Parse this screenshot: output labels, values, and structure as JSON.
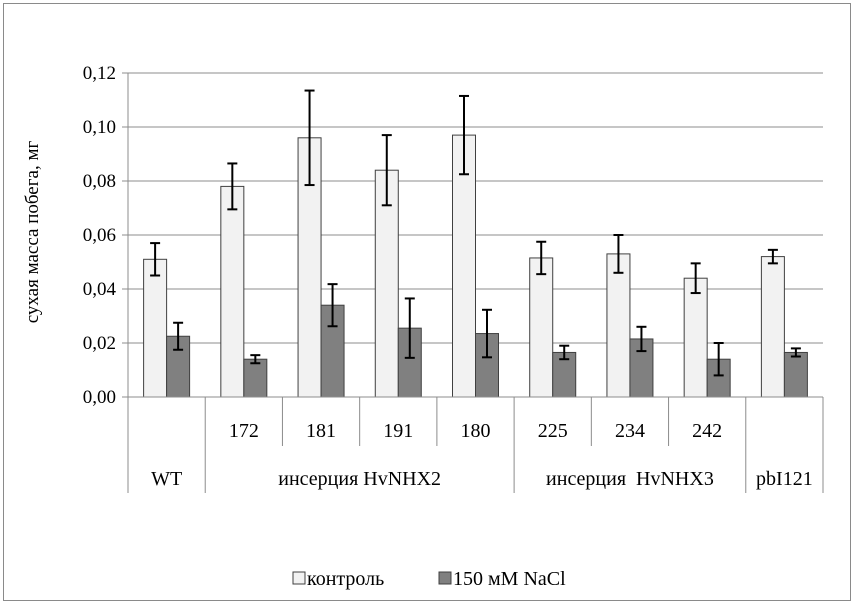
{
  "chart_data": {
    "type": "bar",
    "title": "",
    "ylabel": "сухая масса побега, мг",
    "ylim": [
      0,
      0.12
    ],
    "yticks": [
      "0,00",
      "0,02",
      "0,04",
      "0,06",
      "0,08",
      "0,10",
      "0,12"
    ],
    "ytick_values": [
      0,
      0.02,
      0.04,
      0.06,
      0.08,
      0.1,
      0.12
    ],
    "categories": [
      "",
      "172",
      "181",
      "191",
      "180",
      "225",
      "234",
      "242",
      ""
    ],
    "groups": [
      {
        "label": "WT",
        "span": 1
      },
      {
        "label": "инсерция HvNHX2",
        "span": 4
      },
      {
        "label": "инсерция  HvNHX3",
        "span": 3
      },
      {
        "label": "pbI121",
        "span": 1
      }
    ],
    "series": [
      {
        "name": "контроль",
        "color": "#f2f2f2",
        "values": [
          0.051,
          0.078,
          0.096,
          0.084,
          0.097,
          0.0515,
          0.053,
          0.044,
          0.052
        ],
        "errors": [
          0.006,
          0.0085,
          0.0175,
          0.013,
          0.0145,
          0.006,
          0.007,
          0.0055,
          0.0025
        ]
      },
      {
        "name": "150 мМ NaCl",
        "color": "#808080",
        "values": [
          0.0225,
          0.014,
          0.034,
          0.0255,
          0.0235,
          0.0165,
          0.0215,
          0.014,
          0.0165
        ],
        "errors": [
          0.005,
          0.0015,
          0.0078,
          0.011,
          0.0088,
          0.0025,
          0.0045,
          0.006,
          0.0015
        ]
      }
    ],
    "grid": true,
    "legend_position": "bottom"
  }
}
